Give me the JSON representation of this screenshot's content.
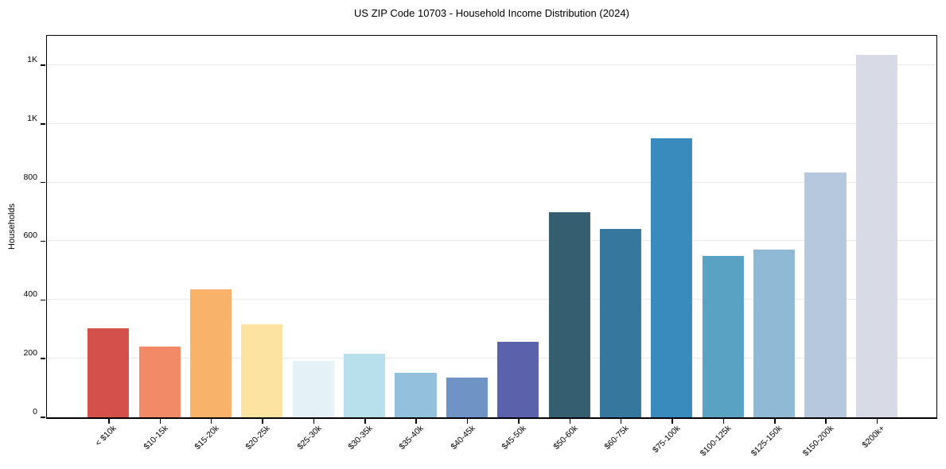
{
  "figure": {
    "title": "US ZIP Code 10703 - Household Income Distribution (2024)"
  },
  "chart_data": {
    "type": "bar",
    "title": "US ZIP Code 10703 - Household Income Distribution (2024)",
    "xlabel": "",
    "ylabel": "Households",
    "categories": [
      "< $10k",
      "$10-15k",
      "$15-20k",
      "$20-25k",
      "$25-30k",
      "$30-35k",
      "$35-40k",
      "$40-45k",
      "$45-50k",
      "$50-60k",
      "$60-75k",
      "$75-100k",
      "$100-125k",
      "$125-150k",
      "$150-200k",
      "$200k+"
    ],
    "values": [
      304,
      241,
      437,
      316,
      191,
      217,
      151,
      135,
      256,
      700,
      641,
      950,
      551,
      571,
      835,
      1235
    ],
    "bar_colors": [
      "#d3504b",
      "#f28a68",
      "#f9b269",
      "#fce3a2",
      "#e4f1f6",
      "#b8dfec",
      "#92c0dd",
      "#6e93c4",
      "#5c61ab",
      "#365e71",
      "#36789d",
      "#398abd",
      "#5aa2c4",
      "#90b9d5",
      "#b5c8de",
      "#d8dae6"
    ],
    "ylim": [
      0,
      1300
    ],
    "yticks": [
      {
        "value": 0,
        "label": "0"
      },
      {
        "value": 200,
        "label": "200"
      },
      {
        "value": 400,
        "label": "400"
      },
      {
        "value": 600,
        "label": "600"
      },
      {
        "value": 800,
        "label": "800"
      },
      {
        "value": 1000,
        "label": "1K"
      },
      {
        "value": 1200,
        "label": "1K"
      }
    ],
    "grid": "horizontal",
    "legend": "none"
  },
  "colors": {
    "background": "#ffffff",
    "grid": "#ececec",
    "axis": "#000000",
    "text": "#000000"
  }
}
